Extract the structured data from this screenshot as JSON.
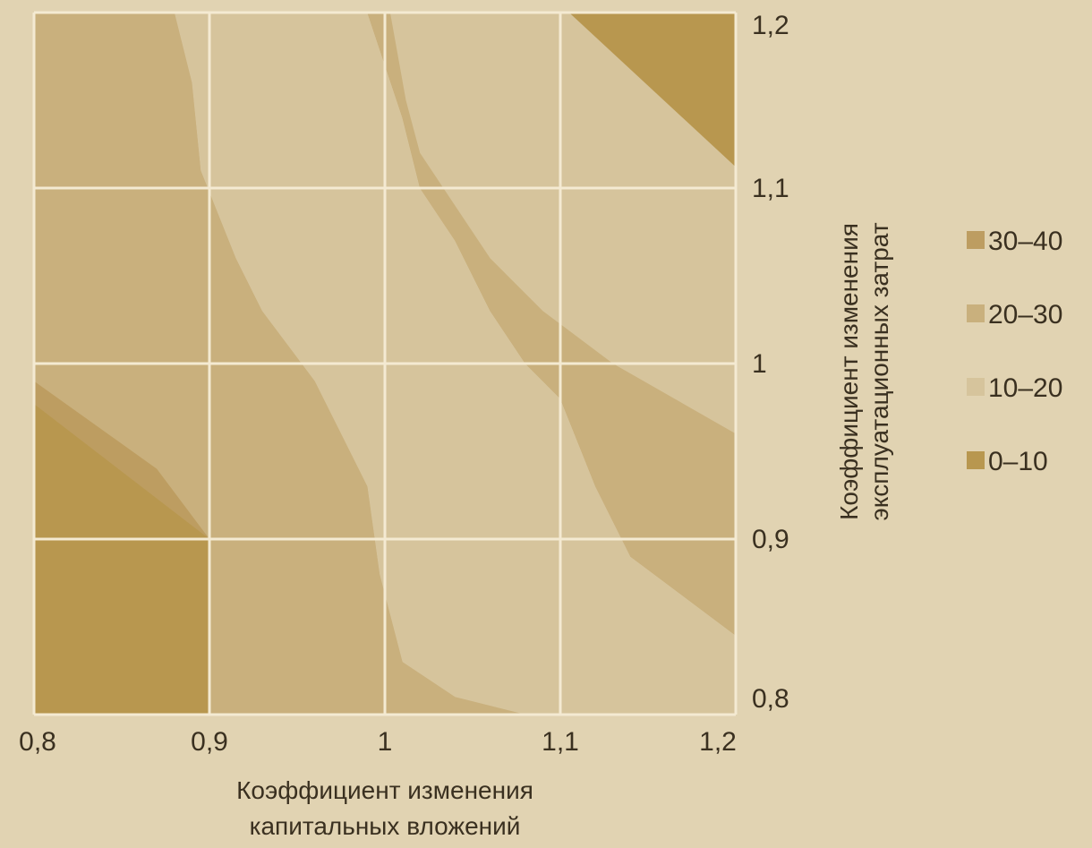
{
  "chart_data": {
    "type": "heatmap",
    "title": "",
    "xlabel": [
      "Коэффициент изменения",
      "капитальных вложений"
    ],
    "ylabel": [
      "Коэффициент изменения",
      "эксплуатационных затрат"
    ],
    "xlim": [
      0.8,
      1.2
    ],
    "ylim": [
      0.8,
      1.2
    ],
    "x_ticks": [
      {
        "value": 0.8,
        "label": "0,8"
      },
      {
        "value": 0.9,
        "label": "0,9"
      },
      {
        "value": 1.0,
        "label": "1"
      },
      {
        "value": 1.1,
        "label": "1,1"
      },
      {
        "value": 1.2,
        "label": "1,2"
      }
    ],
    "y_ticks": [
      {
        "value": 0.8,
        "label": "0,8"
      },
      {
        "value": 0.9,
        "label": "0,9"
      },
      {
        "value": 1.0,
        "label": "1"
      },
      {
        "value": 1.1,
        "label": "1,1"
      },
      {
        "value": 1.2,
        "label": "1,2"
      }
    ],
    "grid": true,
    "legend_position": "right",
    "bands": [
      {
        "name": "0-10",
        "label": "0–10",
        "color": "#b8974f"
      },
      {
        "name": "10-20",
        "label": "10–20",
        "color": "#d6c49c"
      },
      {
        "name": "20-30",
        "label": "20–30",
        "color": "#c9b07d"
      },
      {
        "name": "30-40",
        "label": "30–40",
        "color": "#bd9d61"
      }
    ],
    "regions": [
      {
        "band": "30-40",
        "points": [
          [
            0.8,
            0.8
          ],
          [
            1.2,
            0.8
          ],
          [
            1.2,
            1.2
          ],
          [
            0.8,
            1.2
          ]
        ]
      },
      {
        "band": "20-30",
        "points": [
          [
            0.8,
            0.99
          ],
          [
            0.87,
            0.94
          ],
          [
            0.9,
            0.9
          ],
          [
            0.9,
            0.8
          ],
          [
            1.08,
            0.8
          ],
          [
            1.04,
            0.81
          ],
          [
            1.01,
            0.83
          ],
          [
            0.997,
            0.88
          ],
          [
            0.99,
            0.93
          ],
          [
            0.96,
            0.99
          ],
          [
            0.93,
            1.03
          ],
          [
            0.915,
            1.06
          ],
          [
            0.895,
            1.11
          ],
          [
            0.89,
            1.16
          ],
          [
            0.88,
            1.2
          ],
          [
            0.8,
            1.2
          ]
        ]
      },
      {
        "band": "10-20",
        "points": [
          [
            0.88,
            1.2
          ],
          [
            0.89,
            1.16
          ],
          [
            0.895,
            1.11
          ],
          [
            0.915,
            1.06
          ],
          [
            0.93,
            1.03
          ],
          [
            0.96,
            0.99
          ],
          [
            0.99,
            0.93
          ],
          [
            0.997,
            0.88
          ],
          [
            1.01,
            0.83
          ],
          [
            1.04,
            0.81
          ],
          [
            1.08,
            0.8
          ],
          [
            1.2,
            0.8
          ],
          [
            1.2,
            0.845
          ],
          [
            1.18,
            0.86
          ],
          [
            1.14,
            0.89
          ],
          [
            1.12,
            0.93
          ],
          [
            1.1,
            0.98
          ],
          [
            1.08,
            1.0
          ],
          [
            1.06,
            1.03
          ],
          [
            1.04,
            1.07
          ],
          [
            1.02,
            1.1
          ],
          [
            1.01,
            1.14
          ],
          [
            0.99,
            1.2
          ]
        ]
      },
      {
        "band": "20-30",
        "points": [
          [
            0.99,
            1.2
          ],
          [
            1.01,
            1.14
          ],
          [
            1.02,
            1.1
          ],
          [
            1.04,
            1.07
          ],
          [
            1.06,
            1.03
          ],
          [
            1.08,
            1.0
          ],
          [
            1.1,
            0.98
          ],
          [
            1.12,
            0.93
          ],
          [
            1.14,
            0.89
          ],
          [
            1.18,
            0.86
          ],
          [
            1.2,
            0.845
          ],
          [
            1.2,
            1.2
          ]
        ]
      },
      {
        "band": "10-20",
        "points": [
          [
            1.1,
            1.2
          ],
          [
            1.2,
            1.2
          ],
          [
            1.2,
            1.2
          ]
        ]
      },
      {
        "band": "10-20",
        "points": [
          [
            1.003,
            1.2
          ],
          [
            1.012,
            1.15
          ],
          [
            1.02,
            1.12
          ],
          [
            1.04,
            1.09
          ],
          [
            1.06,
            1.06
          ],
          [
            1.09,
            1.03
          ],
          [
            1.13,
            1.0
          ],
          [
            1.2,
            0.96
          ],
          [
            1.2,
            1.2
          ]
        ]
      },
      {
        "band": "0-10",
        "points": [
          [
            1.105,
            1.2
          ],
          [
            1.2,
            1.2
          ],
          [
            1.2,
            1.112
          ]
        ]
      },
      {
        "band": "0-10",
        "points": [
          [
            0.8,
            0.8
          ],
          [
            0.9,
            0.8
          ],
          [
            0.9,
            0.9
          ],
          [
            0.8,
            0.9
          ]
        ]
      },
      {
        "band": "0-10",
        "points": [
          [
            0.8,
            0.9
          ],
          [
            0.9,
            0.9
          ],
          [
            0.8,
            0.977
          ]
        ]
      }
    ]
  }
}
